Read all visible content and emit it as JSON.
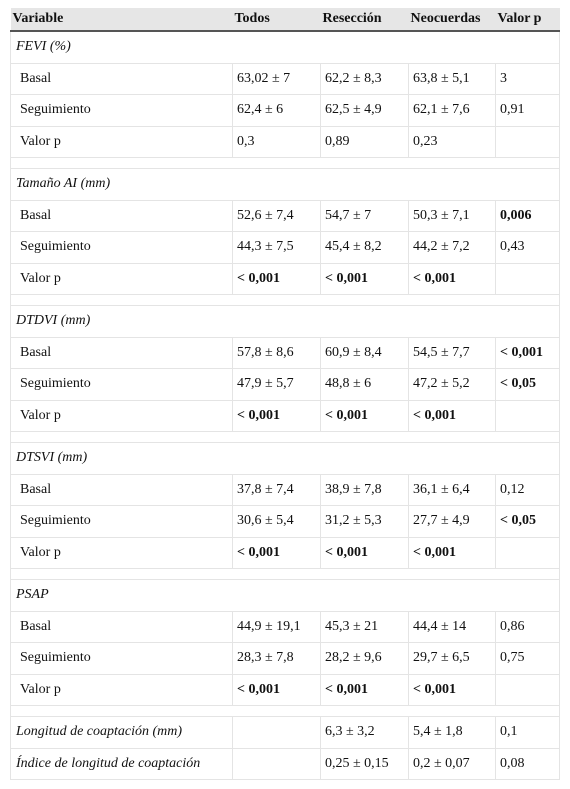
{
  "table": {
    "header": [
      "Variable",
      "Todos",
      "Resección",
      "Neocuerdas",
      "Valor p"
    ],
    "groups": [
      {
        "title": "FEVI (%)",
        "rows": [
          {
            "cells": [
              "Basal",
              "63,02 ± 7",
              "62,2 ± 8,3",
              "63,8 ± 5,1",
              "3"
            ]
          },
          {
            "cells": [
              "Seguimiento",
              "62,4 ± 6",
              "62,5 ± 4,9",
              "62,1 ± 7,6",
              "0,91"
            ]
          },
          {
            "cells": [
              "Valor p",
              "0,3",
              "0,89",
              "0,23",
              null
            ]
          }
        ]
      },
      {
        "title": "Tamaño AI (mm)",
        "rows": [
          {
            "cells": [
              "Basal",
              "52,6 ± 7,4",
              "54,7 ± 7",
              "50,3 ± 7,1",
              "0,006"
            ],
            "bold": [
              4
            ]
          },
          {
            "cells": [
              "Seguimiento",
              "44,3 ± 7,5",
              "45,4 ± 8,2",
              "44,2 ± 7,2",
              "0,43"
            ]
          },
          {
            "cells": [
              "Valor p",
              "< 0,001",
              "< 0,001",
              "< 0,001",
              null
            ],
            "bold": [
              1,
              2,
              3
            ]
          }
        ]
      },
      {
        "title": "DTDVI (mm)",
        "rows": [
          {
            "cells": [
              "Basal",
              "57,8 ± 8,6",
              "60,9 ± 8,4",
              "54,5 ± 7,7",
              "< 0,001"
            ],
            "bold": [
              4
            ]
          },
          {
            "cells": [
              "Seguimiento",
              "47,9 ± 5,7",
              "48,8 ± 6",
              "47,2 ± 5,2",
              "< 0,05"
            ],
            "bold": [
              4
            ]
          },
          {
            "cells": [
              "Valor p",
              "< 0,001",
              "< 0,001",
              "< 0,001",
              null
            ],
            "bold": [
              1,
              2,
              3
            ]
          }
        ]
      },
      {
        "title": "DTSVI (mm)",
        "rows": [
          {
            "cells": [
              "Basal",
              "37,8 ± 7,4",
              "38,9 ± 7,8",
              "36,1 ± 6,4",
              "0,12"
            ]
          },
          {
            "cells": [
              "Seguimiento",
              "30,6 ± 5,4",
              "31,2 ± 5,3",
              "27,7 ± 4,9",
              "< 0,05"
            ],
            "bold": [
              4
            ]
          },
          {
            "cells": [
              "Valor p",
              "< 0,001",
              "< 0,001",
              "< 0,001",
              null
            ],
            "bold": [
              1,
              2,
              3
            ]
          }
        ]
      },
      {
        "title": "PSAP",
        "rows": [
          {
            "cells": [
              "Basal",
              "44,9 ± 19,1",
              "45,3 ± 21",
              "44,4 ± 14",
              "0,86"
            ]
          },
          {
            "cells": [
              "Seguimiento",
              "28,3 ± 7,8",
              "28,2 ± 9,6",
              "29,7 ± 6,5",
              "0,75"
            ]
          },
          {
            "cells": [
              "Valor p",
              "< 0,001",
              "< 0,001",
              "< 0,001",
              null
            ],
            "bold": [
              1,
              2,
              3
            ]
          }
        ]
      }
    ],
    "footer_rows": [
      {
        "cells": [
          "Longitud de coaptación (mm)",
          null,
          "6,3 ± 3,2",
          "5,4 ± 1,8",
          "0,1"
        ]
      },
      {
        "cells": [
          "Índice de longitud de coaptación",
          null,
          "0,25 ± 0,15",
          "0,2 ± 0,07",
          "0,08"
        ]
      }
    ]
  }
}
